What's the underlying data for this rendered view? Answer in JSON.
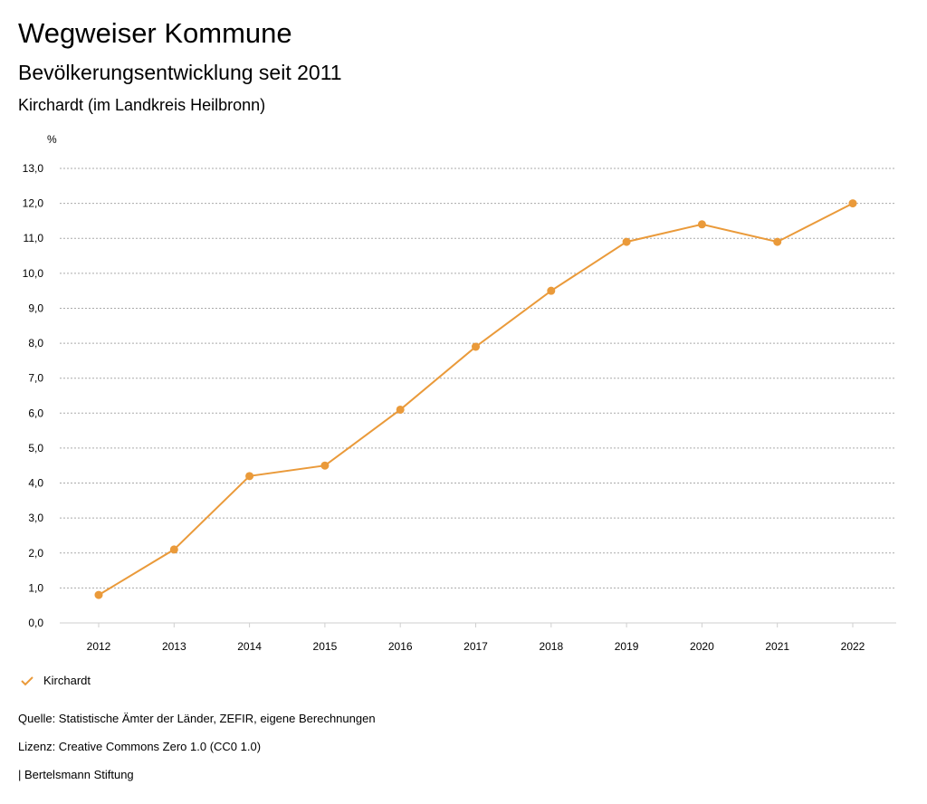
{
  "header": {
    "title": "Wegweiser Kommune",
    "subtitle": "Bevölkerungsentwicklung seit 2011",
    "region": "Kirchardt (im Landkreis Heilbronn)"
  },
  "legend": {
    "label": "Kirchardt",
    "icon": "check-icon"
  },
  "footer": {
    "source": "Quelle: Statistische Ämter der Länder, ZEFIR, eigene Berechnungen",
    "license": "Lizenz: Creative Commons Zero 1.0 (CC0 1.0)",
    "publisher": "| Bertelsmann Stiftung"
  },
  "colors": {
    "series": "#ea9a3a",
    "grid": "#aaaaaa",
    "axis": "#cfcfcf"
  },
  "chart_data": {
    "type": "line",
    "ylabel": "%",
    "xlabel": "",
    "x": [
      "2012",
      "2013",
      "2014",
      "2015",
      "2016",
      "2017",
      "2018",
      "2019",
      "2020",
      "2021",
      "2022"
    ],
    "ylim": [
      0,
      13
    ],
    "yticks": [
      "0,0",
      "1,0",
      "2,0",
      "3,0",
      "4,0",
      "5,0",
      "6,0",
      "7,0",
      "8,0",
      "9,0",
      "10,0",
      "11,0",
      "12,0",
      "13,0"
    ],
    "grid": true,
    "legend_position": "bottom-left",
    "series": [
      {
        "name": "Kirchardt",
        "values": [
          0.8,
          2.1,
          4.2,
          4.5,
          6.1,
          7.9,
          9.5,
          10.9,
          11.4,
          10.9,
          12.0
        ]
      }
    ]
  }
}
